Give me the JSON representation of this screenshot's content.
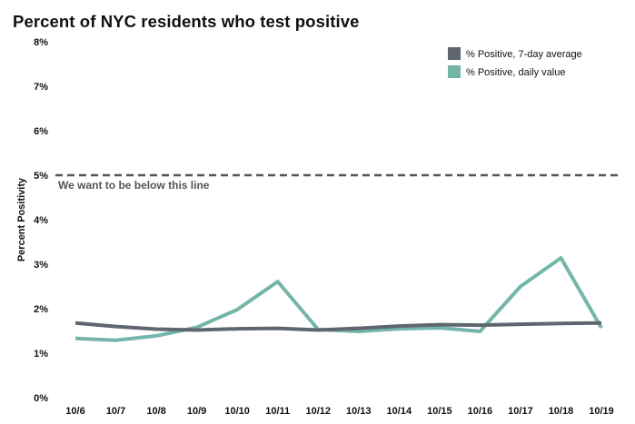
{
  "chart_data": {
    "type": "line",
    "title": "Percent of NYC residents who test positive",
    "xlabel": "",
    "ylabel": "Percent Positivity",
    "categories": [
      "10/6",
      "10/7",
      "10/8",
      "10/9",
      "10/10",
      "10/11",
      "10/12",
      "10/13",
      "10/14",
      "10/15",
      "10/16",
      "10/17",
      "10/18",
      "10/19"
    ],
    "ylim": [
      0,
      8
    ],
    "y_ticks": [
      0,
      1,
      2,
      3,
      4,
      5,
      6,
      7,
      8
    ],
    "y_tick_labels": [
      "0%",
      "1%",
      "2%",
      "3%",
      "4%",
      "5%",
      "6%",
      "7%",
      "8%"
    ],
    "series": [
      {
        "name": "% Positive, 7-day average",
        "color": "#5f6670",
        "values": [
          1.68,
          1.6,
          1.54,
          1.52,
          1.55,
          1.56,
          1.52,
          1.56,
          1.61,
          1.64,
          1.63,
          1.65,
          1.67,
          1.68
        ]
      },
      {
        "name": "% Positive, daily value",
        "color": "#74b5aa",
        "values": [
          1.33,
          1.29,
          1.39,
          1.58,
          1.98,
          2.61,
          1.53,
          1.49,
          1.55,
          1.57,
          1.49,
          2.5,
          3.14,
          1.57
        ]
      }
    ],
    "threshold": {
      "value": 5,
      "label": "We want to be below this line",
      "color": "#555555"
    },
    "legend_position": "top-right",
    "grid": false
  }
}
